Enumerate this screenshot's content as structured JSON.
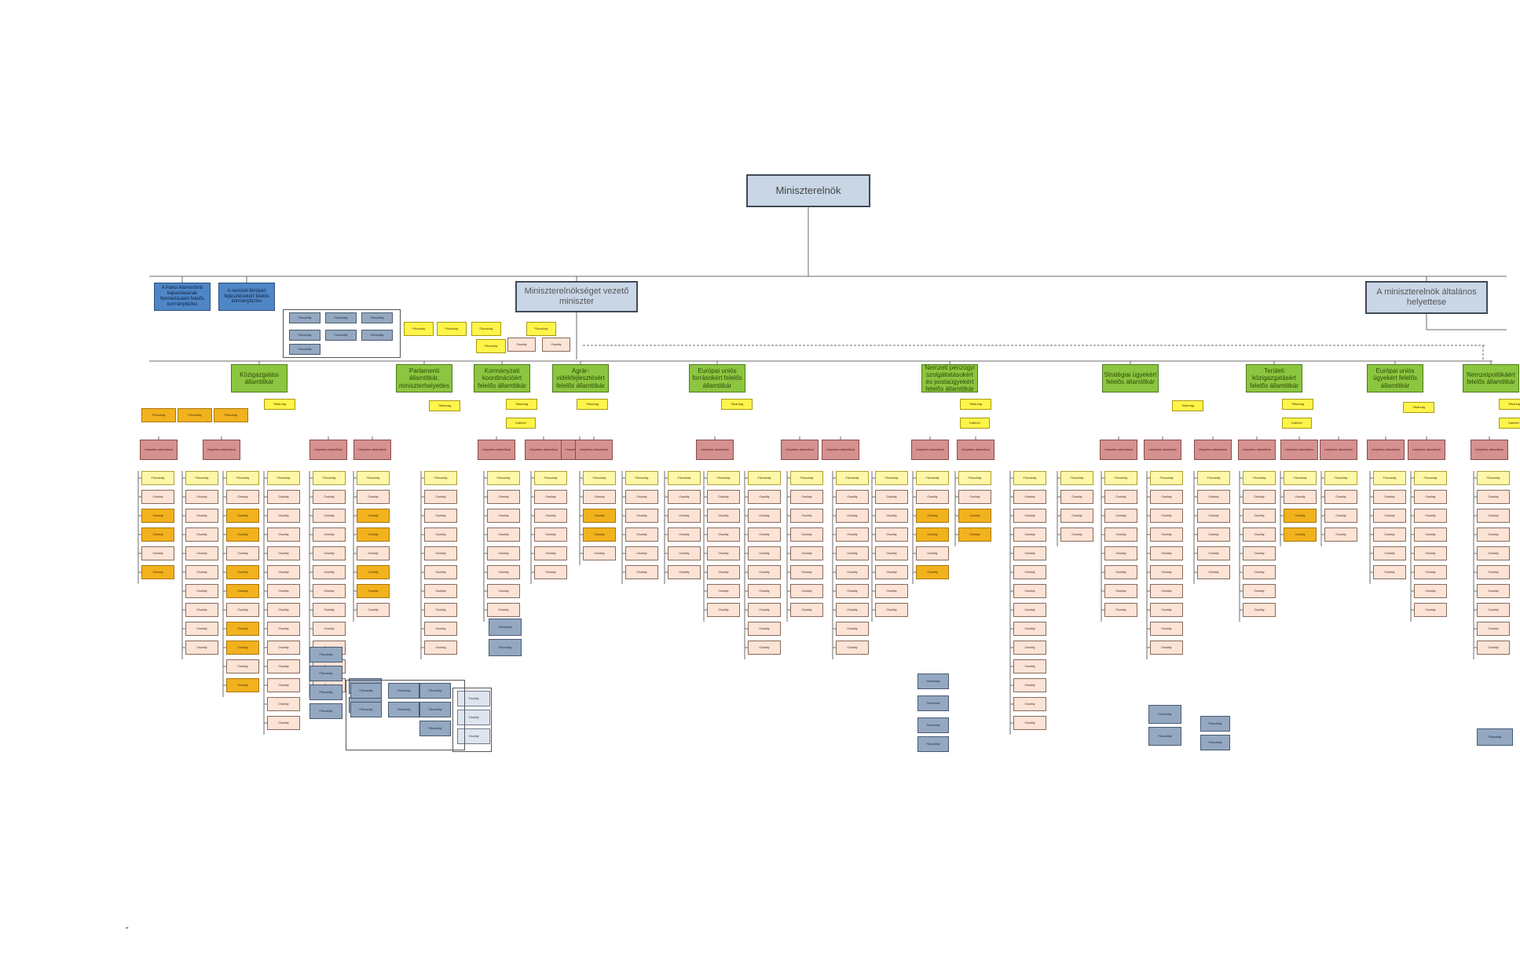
{
  "title": "Miniszterelnök",
  "colors": {
    "line": "#6b6b6b",
    "top_box": "#c8d6e6",
    "blue": "#4f86c6",
    "green": "#8cc53f",
    "red": "#d5918f",
    "orange": "#f2b21e",
    "yellow": "#fff44a",
    "peach": "#fbe3d6",
    "grey": "#94a8c2"
  },
  "top_units": [
    {
      "key": "mevm",
      "label": "Miniszterelnökséget vezető miniszter"
    },
    {
      "key": "helyettes",
      "label": "A miniszterelnök általános helyettese"
    }
  ],
  "commissioners": [
    "A Paksi Atomerőmű kapacitásának fenntartásáért felelős kormánybiztos",
    "A nemzeti fémipari fejlesztésekért felelős kormánybiztos"
  ],
  "state_secretaries": [
    "Közigazgatási államtitkár",
    "Parlamenti államtitkár, miniszterhelyettes",
    "Kormányzati koordinációért felelős államtitkár",
    "Agrár-vidékfejlesztésért felelős államtitkár",
    "Európai uniós forrásokért felelős államtitkár",
    "Nemzeti pénzügyi szolgáltatásokért és postaügyekért felelős államtitkár",
    "Stratégiai ügyekért felelős államtitkár",
    "Területi közigazgatásért felelős államtitkár",
    "Európai uniós ügyekért felelős államtitkár",
    "Nemzetpolitikáért felelős államtitkár"
  ],
  "common_labels": {
    "titkarsag": "Titkárság",
    "kabinet": "Kabinet",
    "foosztaly": "Főosztály",
    "osztaly": "Osztály",
    "helyettes_allamtitkar": "Helyettes államtitkár"
  },
  "footer_mark": "\""
}
